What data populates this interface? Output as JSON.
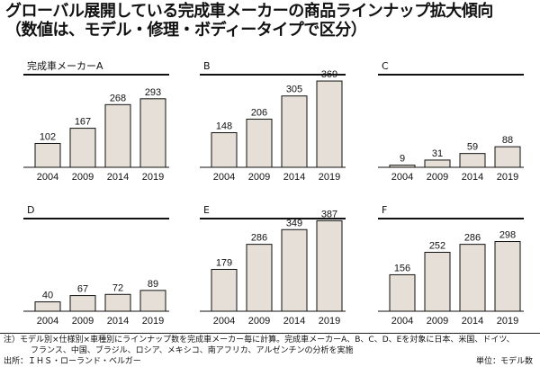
{
  "title": {
    "line1": "グローバル展開している完成車メーカーの商品ラインナップ拡大傾向",
    "line2": "（数値は、モデル・修理・ボディータイプで区分）"
  },
  "chart_data": [
    {
      "type": "bar",
      "title": "完成車メーカーA",
      "categories": [
        "2004",
        "2009",
        "2014",
        "2019"
      ],
      "values": [
        102,
        167,
        268,
        293
      ],
      "ylim": [
        0,
        400
      ]
    },
    {
      "type": "bar",
      "title": "B",
      "categories": [
        "2004",
        "2009",
        "2014",
        "2019"
      ],
      "values": [
        148,
        206,
        305,
        369
      ],
      "ylim": [
        0,
        400
      ]
    },
    {
      "type": "bar",
      "title": "C",
      "categories": [
        "2004",
        "2009",
        "2014",
        "2019"
      ],
      "values": [
        9,
        31,
        59,
        88
      ],
      "ylim": [
        0,
        400
      ]
    },
    {
      "type": "bar",
      "title": "D",
      "categories": [
        "2004",
        "2009",
        "2014",
        "2019"
      ],
      "values": [
        40,
        67,
        72,
        89
      ],
      "ylim": [
        0,
        400
      ]
    },
    {
      "type": "bar",
      "title": "E",
      "categories": [
        "2004",
        "2009",
        "2014",
        "2019"
      ],
      "values": [
        179,
        286,
        349,
        387
      ],
      "ylim": [
        0,
        400
      ]
    },
    {
      "type": "bar",
      "title": "F",
      "categories": [
        "2004",
        "2009",
        "2014",
        "2019"
      ],
      "values": [
        156,
        252,
        286,
        298
      ],
      "ylim": [
        0,
        400
      ]
    }
  ],
  "notes": {
    "line1": "注）モデル別×仕様別×車種別にラインナップ数を完成車メーカー毎に計算。完成車メーカーA、B、C、D、Eを対象に日本、米国、ドイツ、",
    "line2": "フランス、中国、ブラジル、ロシア、メキシコ、南アフリカ、アルゼンチンの分析を実施",
    "source": "出所：ＩＨＳ・ローランド・ベルガー",
    "unit": "単位：モデル数"
  }
}
